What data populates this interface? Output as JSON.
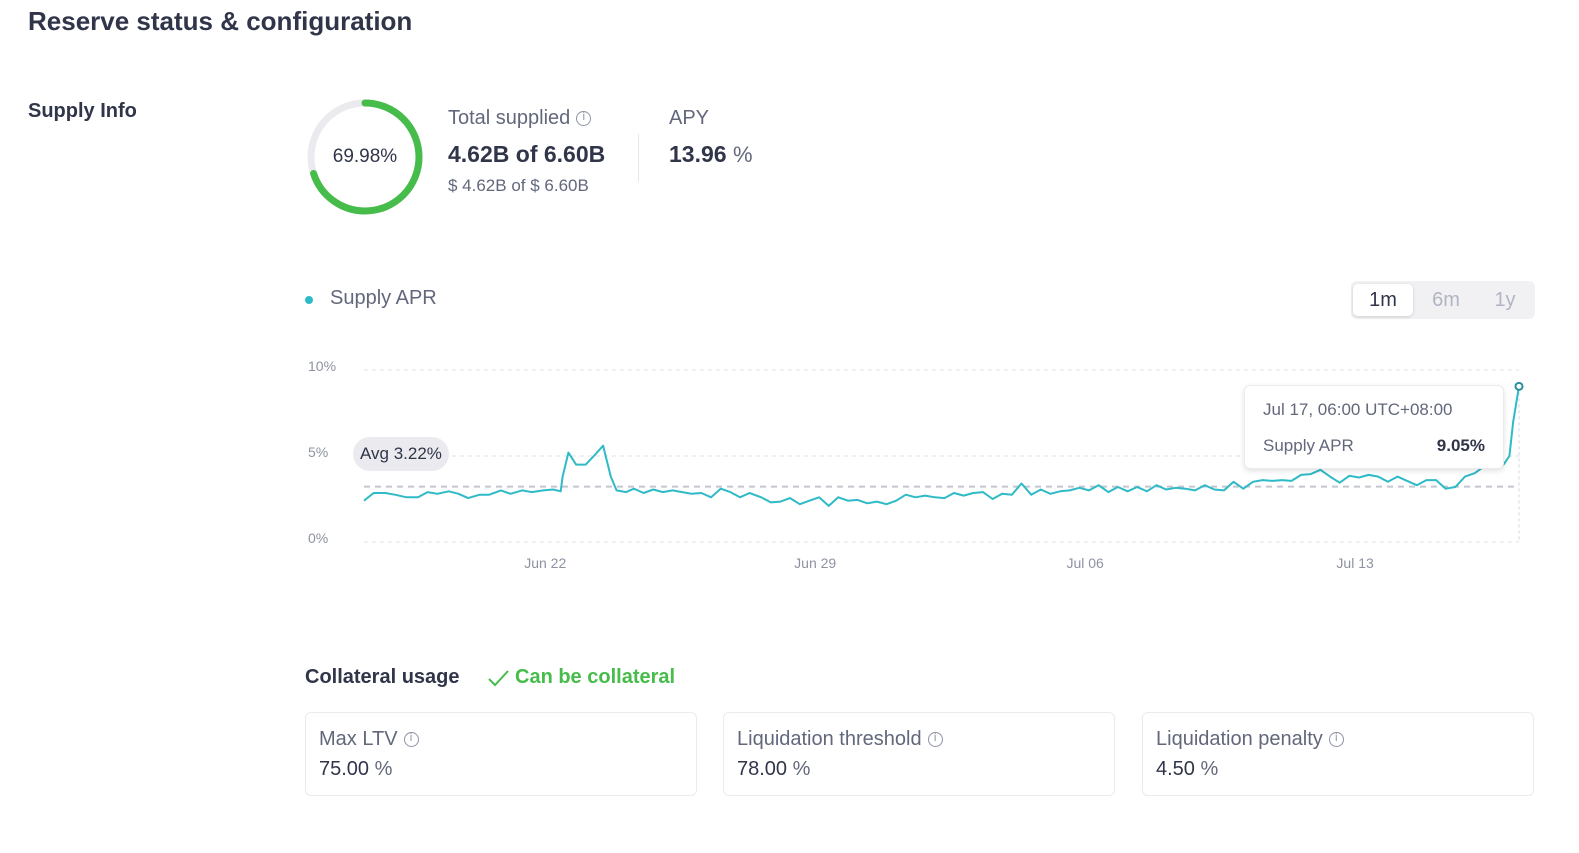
{
  "page_title": "Reserve status & configuration",
  "supply_info": {
    "section_label": "Supply Info",
    "utilization": "69.98%",
    "utilization_value": 69.98,
    "total_supplied_label": "Total supplied",
    "total_supplied_value": "4.62B of 6.60B",
    "total_supplied_usd": "$ 4.62B of $ 6.60B",
    "apy_label": "APY",
    "apy_value": "13.96",
    "apy_unit": "%"
  },
  "chart": {
    "legend_label": "Supply APR",
    "ranges": [
      "1m",
      "6m",
      "1y"
    ],
    "active_range": "1m",
    "avg_label": "Avg 3.22%",
    "tooltip": {
      "time": "Jul 17, 06:00 UTC+08:00",
      "label": "Supply APR",
      "value": "9.05%"
    }
  },
  "chart_data": {
    "type": "line",
    "title": "Supply APR",
    "series": [
      {
        "name": "Supply APR",
        "color": "#2ebac6"
      }
    ],
    "ylim": [
      0,
      10
    ],
    "y_ticks": [
      "0%",
      "5%",
      "10%"
    ],
    "x_ticks": [
      {
        "label": "Jun 22",
        "day": 5
      },
      {
        "label": "Jun 29",
        "day": 12
      },
      {
        "label": "Jul 06",
        "day": 19
      },
      {
        "label": "Jul 13",
        "day": 26
      }
    ],
    "x_range_days": [
      0.3,
      30.25
    ],
    "average": 3.22,
    "points": [
      [
        0.3,
        2.4
      ],
      [
        0.55,
        2.85
      ],
      [
        0.85,
        2.85
      ],
      [
        1.1,
        2.75
      ],
      [
        1.4,
        2.6
      ],
      [
        1.7,
        2.6
      ],
      [
        1.95,
        2.9
      ],
      [
        2.2,
        2.8
      ],
      [
        2.5,
        2.95
      ],
      [
        2.75,
        2.8
      ],
      [
        3.0,
        2.55
      ],
      [
        3.3,
        2.75
      ],
      [
        3.55,
        2.75
      ],
      [
        3.85,
        3.0
      ],
      [
        4.1,
        2.8
      ],
      [
        4.4,
        3.0
      ],
      [
        4.65,
        2.9
      ],
      [
        4.95,
        3.0
      ],
      [
        5.2,
        3.05
      ],
      [
        5.4,
        2.95
      ],
      [
        5.45,
        3.8
      ],
      [
        5.6,
        5.2
      ],
      [
        5.8,
        4.5
      ],
      [
        6.05,
        4.5
      ],
      [
        6.3,
        5.1
      ],
      [
        6.5,
        5.6
      ],
      [
        6.7,
        3.8
      ],
      [
        6.85,
        3.0
      ],
      [
        7.1,
        2.9
      ],
      [
        7.3,
        3.1
      ],
      [
        7.55,
        2.85
      ],
      [
        7.8,
        3.05
      ],
      [
        8.05,
        2.9
      ],
      [
        8.3,
        3.0
      ],
      [
        8.55,
        2.9
      ],
      [
        8.8,
        2.8
      ],
      [
        9.05,
        2.85
      ],
      [
        9.3,
        2.6
      ],
      [
        9.55,
        3.1
      ],
      [
        9.8,
        2.9
      ],
      [
        10.05,
        2.6
      ],
      [
        10.3,
        2.85
      ],
      [
        10.6,
        2.6
      ],
      [
        10.85,
        2.3
      ],
      [
        11.1,
        2.35
      ],
      [
        11.35,
        2.55
      ],
      [
        11.6,
        2.2
      ],
      [
        11.85,
        2.4
      ],
      [
        12.1,
        2.6
      ],
      [
        12.35,
        2.1
      ],
      [
        12.6,
        2.6
      ],
      [
        12.85,
        2.4
      ],
      [
        13.1,
        2.45
      ],
      [
        13.35,
        2.25
      ],
      [
        13.6,
        2.35
      ],
      [
        13.85,
        2.2
      ],
      [
        14.1,
        2.4
      ],
      [
        14.35,
        2.75
      ],
      [
        14.6,
        2.6
      ],
      [
        14.85,
        2.7
      ],
      [
        15.1,
        2.6
      ],
      [
        15.35,
        2.55
      ],
      [
        15.6,
        2.85
      ],
      [
        15.85,
        2.7
      ],
      [
        16.1,
        2.85
      ],
      [
        16.35,
        2.9
      ],
      [
        16.6,
        2.5
      ],
      [
        16.85,
        2.8
      ],
      [
        17.1,
        2.75
      ],
      [
        17.35,
        3.4
      ],
      [
        17.6,
        2.75
      ],
      [
        17.85,
        3.05
      ],
      [
        18.1,
        2.8
      ],
      [
        18.35,
        2.95
      ],
      [
        18.6,
        3.0
      ],
      [
        18.85,
        3.15
      ],
      [
        19.1,
        3.0
      ],
      [
        19.35,
        3.3
      ],
      [
        19.6,
        2.9
      ],
      [
        19.85,
        3.2
      ],
      [
        20.1,
        2.95
      ],
      [
        20.35,
        3.2
      ],
      [
        20.6,
        2.95
      ],
      [
        20.85,
        3.3
      ],
      [
        21.1,
        3.05
      ],
      [
        21.35,
        3.15
      ],
      [
        21.6,
        3.1
      ],
      [
        21.85,
        3.0
      ],
      [
        22.1,
        3.3
      ],
      [
        22.35,
        3.05
      ],
      [
        22.6,
        3.0
      ],
      [
        22.85,
        3.5
      ],
      [
        23.1,
        3.1
      ],
      [
        23.35,
        3.5
      ],
      [
        23.6,
        3.6
      ],
      [
        23.85,
        3.55
      ],
      [
        24.1,
        3.6
      ],
      [
        24.35,
        3.55
      ],
      [
        24.6,
        3.9
      ],
      [
        24.85,
        3.95
      ],
      [
        25.1,
        4.2
      ],
      [
        25.35,
        3.8
      ],
      [
        25.6,
        3.45
      ],
      [
        25.85,
        3.85
      ],
      [
        26.1,
        3.75
      ],
      [
        26.35,
        3.9
      ],
      [
        26.6,
        3.8
      ],
      [
        26.85,
        3.5
      ],
      [
        27.1,
        3.8
      ],
      [
        27.35,
        3.55
      ],
      [
        27.6,
        3.3
      ],
      [
        27.85,
        3.6
      ],
      [
        28.1,
        3.6
      ],
      [
        28.35,
        3.1
      ],
      [
        28.6,
        3.2
      ],
      [
        28.85,
        3.8
      ],
      [
        29.1,
        4.0
      ],
      [
        29.35,
        4.4
      ],
      [
        29.6,
        4.4
      ],
      [
        29.85,
        4.5
      ],
      [
        30.0,
        5.0
      ],
      [
        30.1,
        7.0
      ],
      [
        30.25,
        9.05
      ]
    ]
  },
  "collateral": {
    "title": "Collateral usage",
    "status": "Can be collateral",
    "cards": [
      {
        "label": "Max LTV",
        "value": "75.00",
        "unit": "%"
      },
      {
        "label": "Liquidation threshold",
        "value": "78.00",
        "unit": "%"
      },
      {
        "label": "Liquidation penalty",
        "value": "4.50",
        "unit": "%"
      }
    ]
  },
  "colors": {
    "accent_line": "#2ebac6",
    "ring_green": "#46bc4b",
    "text_primary": "#303549",
    "text_secondary": "#62677b"
  }
}
